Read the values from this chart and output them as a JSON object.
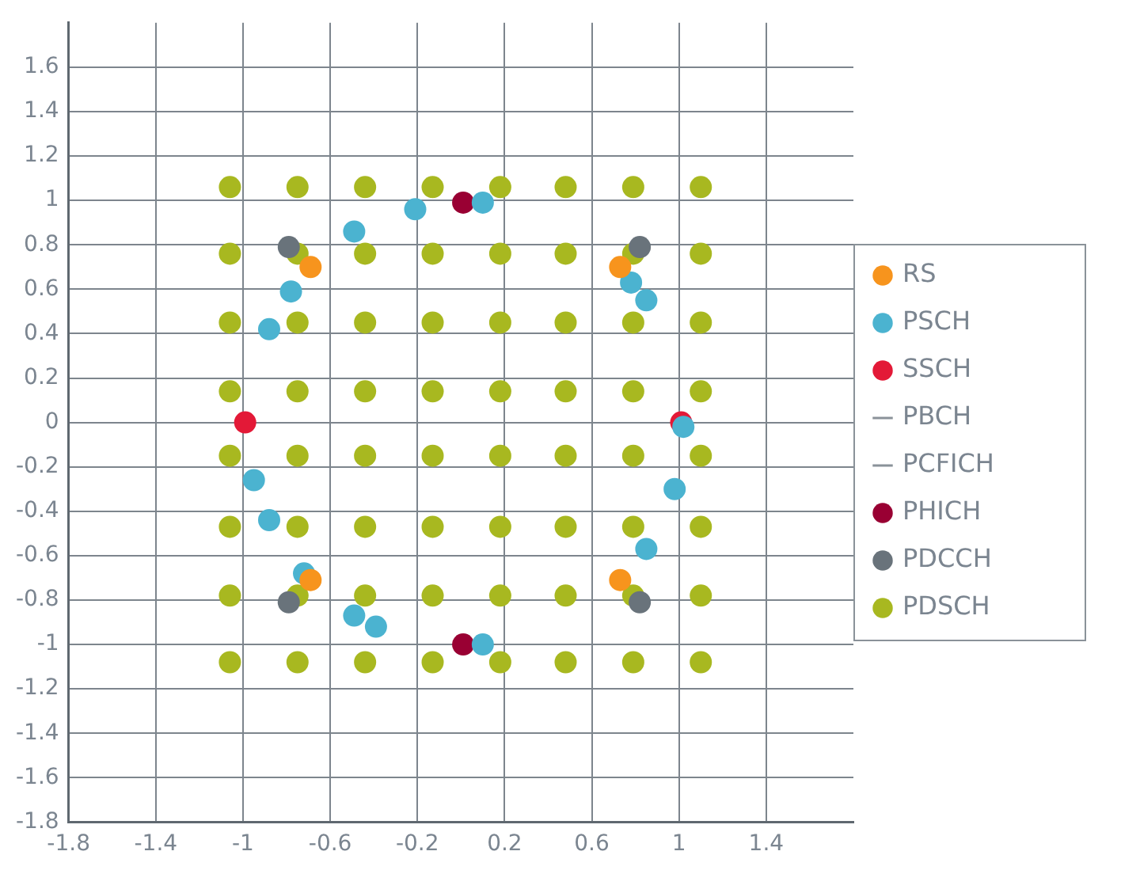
{
  "chart_data": {
    "type": "scatter",
    "xlim": [
      -1.8,
      1.8
    ],
    "ylim": [
      -1.8,
      1.8
    ],
    "xticks": [
      -1.8,
      -1.4,
      -1,
      -0.6,
      -0.2,
      0.2,
      0.6,
      1,
      1.4
    ],
    "yticks": [
      -1.8,
      -1.6,
      -1.4,
      -1.2,
      -1,
      -0.8,
      -0.6,
      -0.4,
      -0.2,
      0,
      0.2,
      0.4,
      0.6,
      0.8,
      1,
      1.2,
      1.4,
      1.6
    ],
    "grid": true,
    "legend": "right",
    "marker": "circle",
    "series": [
      {
        "name": "RS",
        "color": "#f7941d",
        "x": [
          -0.69,
          0.73,
          -0.69,
          0.73
        ],
        "values": [
          0.7,
          0.7,
          -0.71,
          -0.71
        ]
      },
      {
        "name": "PSCH",
        "color": "#4bb3d0",
        "x": [
          -0.21,
          -0.49,
          0.1,
          -0.78,
          -0.88,
          0.78,
          0.85,
          1.02,
          -0.95,
          -0.88,
          -0.72,
          -0.49,
          -0.39,
          0.1,
          0.98,
          0.85
        ],
        "values": [
          0.96,
          0.86,
          0.99,
          0.59,
          0.42,
          0.63,
          0.55,
          -0.02,
          -0.26,
          -0.44,
          -0.68,
          -0.87,
          -0.92,
          -1,
          -0.3,
          -0.57
        ]
      },
      {
        "name": "SSCH",
        "color": "#e31937",
        "x": [
          -0.99,
          1.01
        ],
        "values": [
          0,
          0
        ]
      },
      {
        "name": "PBCH",
        "type": "line",
        "marker": "none",
        "color": "#8a9299"
      },
      {
        "name": "PCFICH",
        "type": "line",
        "marker": "none",
        "color": "#8a9299"
      },
      {
        "name": "PHICH",
        "color": "#990033",
        "x": [
          0.01,
          0.01
        ],
        "values": [
          0.99,
          -1
        ]
      },
      {
        "name": "PDCCH",
        "color": "#69737b",
        "x": [
          -0.79,
          0.82,
          -0.79,
          0.82
        ],
        "values": [
          0.79,
          0.79,
          -0.81,
          -0.81
        ]
      },
      {
        "name": "PDSCH",
        "color": "#a8b820",
        "x": [
          -1.06,
          -0.75,
          -0.44,
          -0.13,
          0.18,
          0.48,
          0.79,
          1.1,
          -1.06,
          -0.75,
          -0.44,
          -0.13,
          0.18,
          0.48,
          0.79,
          1.1,
          -1.06,
          -0.75,
          -0.44,
          -0.13,
          0.18,
          0.48,
          0.79,
          1.1,
          -1.06,
          -0.75,
          -0.44,
          -0.13,
          0.18,
          0.48,
          0.79,
          1.1,
          -1.06,
          -0.75,
          -0.44,
          -0.13,
          0.18,
          0.48,
          0.79,
          1.1,
          -1.06,
          -0.75,
          -0.44,
          -0.13,
          0.18,
          0.48,
          0.79,
          1.1,
          -1.06,
          -0.75,
          -0.44,
          -0.13,
          0.18,
          0.48,
          0.79,
          1.1,
          -1.06,
          -0.75,
          -0.44,
          -0.13,
          0.18,
          0.48,
          0.79,
          1.1
        ],
        "values": [
          1.06,
          1.06,
          1.06,
          1.06,
          1.06,
          1.06,
          1.06,
          1.06,
          0.76,
          0.76,
          0.76,
          0.76,
          0.76,
          0.76,
          0.76,
          0.76,
          0.45,
          0.45,
          0.45,
          0.45,
          0.45,
          0.45,
          0.45,
          0.45,
          0.14,
          0.14,
          0.14,
          0.14,
          0.14,
          0.14,
          0.14,
          0.14,
          -0.15,
          -0.15,
          -0.15,
          -0.15,
          -0.15,
          -0.15,
          -0.15,
          -0.15,
          -0.47,
          -0.47,
          -0.47,
          -0.47,
          -0.47,
          -0.47,
          -0.47,
          -0.47,
          -0.78,
          -0.78,
          -0.78,
          -0.78,
          -0.78,
          -0.78,
          -0.78,
          -0.78,
          -1.08,
          -1.08,
          -1.08,
          -1.08,
          -1.08,
          -1.08,
          -1.08,
          -1.08
        ]
      }
    ]
  }
}
